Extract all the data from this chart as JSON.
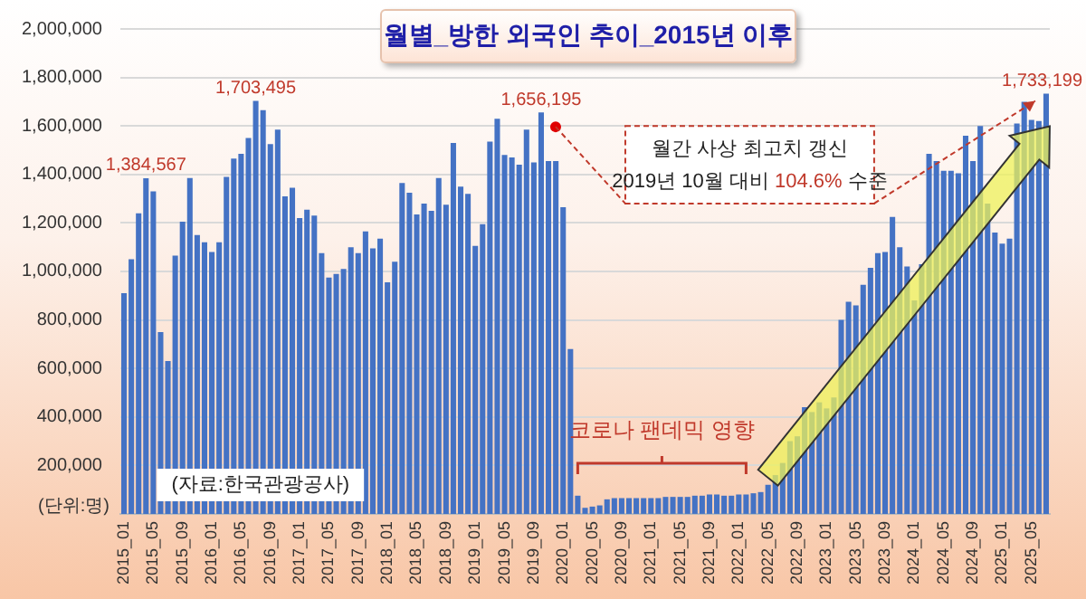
{
  "chart_data": {
    "type": "bar",
    "title": "월별_방한 외국인 추이_2015년 이후",
    "categories": [
      "2015_01",
      null,
      null,
      null,
      "2015_05",
      null,
      null,
      null,
      "2015_09",
      null,
      null,
      null,
      "2016_01",
      null,
      null,
      null,
      "2016_05",
      null,
      null,
      null,
      "2016_09",
      null,
      null,
      null,
      "2017_01",
      null,
      null,
      null,
      "2017_05",
      null,
      null,
      null,
      "2017_09",
      null,
      null,
      null,
      "2018_01",
      null,
      null,
      null,
      "2018_05",
      null,
      null,
      null,
      "2018_09",
      null,
      null,
      null,
      "2019_01",
      null,
      null,
      null,
      "2019_05",
      null,
      null,
      null,
      "2019_09",
      null,
      null,
      null,
      "2020_01",
      null,
      null,
      null,
      "2020_05",
      null,
      null,
      null,
      "2020_09",
      null,
      null,
      null,
      "2021_01",
      null,
      null,
      null,
      "2021_05",
      null,
      null,
      null,
      "2021_09",
      null,
      null,
      null,
      "2022_01",
      null,
      null,
      null,
      "2022_05",
      null,
      null,
      null,
      "2022_09",
      null,
      null,
      null,
      "2023_01",
      null,
      null,
      null,
      "2023_05",
      null,
      null,
      null,
      "2023_09",
      null,
      null,
      null,
      "2024_01",
      null,
      null,
      null,
      "2024_05",
      null,
      null,
      null,
      "2024_09",
      null,
      null,
      null,
      "2025_01",
      null,
      null,
      null,
      "2025_05",
      null,
      null
    ],
    "values": [
      910000,
      1050000,
      1240000,
      1384567,
      1330000,
      750000,
      630000,
      1065000,
      1205000,
      1385000,
      1150000,
      1120000,
      1080000,
      1120000,
      1390000,
      1465000,
      1485000,
      1550000,
      1703495,
      1665000,
      1525000,
      1585000,
      1310000,
      1345000,
      1220000,
      1255000,
      1230000,
      1075000,
      975000,
      990000,
      1010000,
      1100000,
      1075000,
      1165000,
      1095000,
      1135000,
      955000,
      1040000,
      1365000,
      1325000,
      1235000,
      1280000,
      1250000,
      1385000,
      1275000,
      1530000,
      1350000,
      1320000,
      1105000,
      1195000,
      1535000,
      1630000,
      1480000,
      1470000,
      1440000,
      1585000,
      1450000,
      1656195,
      1455000,
      1455000,
      1265000,
      680000,
      75000,
      25000,
      30000,
      35000,
      60000,
      65000,
      65000,
      65000,
      65000,
      65000,
      65000,
      65000,
      70000,
      70000,
      70000,
      70000,
      75000,
      75000,
      80000,
      80000,
      75000,
      75000,
      80000,
      80000,
      85000,
      90000,
      120000,
      160000,
      210000,
      300000,
      320000,
      440000,
      420000,
      460000,
      435000,
      480000,
      800000,
      875000,
      860000,
      945000,
      1015000,
      1075000,
      1080000,
      1225000,
      1100000,
      1020000,
      880000,
      1030000,
      1485000,
      1455000,
      1415000,
      1415000,
      1405000,
      1560000,
      1455000,
      1600000,
      1280000,
      1160000,
      1115000,
      1135000,
      1610000,
      1700000,
      1625000,
      1620000,
      1733199
    ],
    "value_labels": [
      null,
      null,
      null,
      "1,384,567",
      null,
      null,
      null,
      null,
      null,
      null,
      null,
      null,
      null,
      null,
      null,
      null,
      null,
      null,
      "1,703,495",
      null,
      null,
      null,
      null,
      null,
      null,
      null,
      null,
      null,
      null,
      null,
      null,
      null,
      null,
      null,
      null,
      null,
      null,
      null,
      null,
      null,
      null,
      null,
      null,
      null,
      null,
      null,
      null,
      null,
      null,
      null,
      null,
      null,
      null,
      null,
      null,
      null,
      null,
      "1,656,195",
      null,
      null,
      null,
      null,
      null,
      null,
      null,
      null,
      null,
      null,
      null,
      null,
      null,
      null,
      null,
      null,
      null,
      null,
      null,
      null,
      null,
      null,
      null,
      null,
      null,
      null,
      null,
      null,
      null,
      null,
      null,
      null,
      null,
      null,
      null,
      null,
      null,
      null,
      null,
      null,
      null,
      null,
      null,
      null,
      null,
      null,
      null,
      null,
      null,
      null,
      null,
      null,
      null,
      null,
      null,
      null,
      null,
      null,
      null,
      null,
      null,
      null,
      null,
      null,
      null,
      null,
      null,
      null,
      "1,733,199"
    ],
    "color": "#4472c4",
    "ylim": [
      0,
      2000000
    ],
    "yticks": [
      {
        "value": 200000,
        "label": "200,000"
      },
      {
        "value": 400000,
        "label": "400,000"
      },
      {
        "value": 600000,
        "label": "600,000"
      },
      {
        "value": 800000,
        "label": "800,000"
      },
      {
        "value": 1000000,
        "label": "1,000,000"
      },
      {
        "value": 1200000,
        "label": "1,200,000"
      },
      {
        "value": 1400000,
        "label": "1,400,000"
      },
      {
        "value": 1600000,
        "label": "1,600,000"
      },
      {
        "value": 1800000,
        "label": "1,800,000"
      },
      {
        "value": 2000000,
        "label": "2,000,000"
      }
    ],
    "grid": "y",
    "annotations": [
      "월간 사상 최고치 갱신",
      "2019년 10월 대비 104.6% 수준",
      "코로나 팬데믹 영향",
      "(자료:한국관광공사)",
      "(단위:명)"
    ]
  }
}
